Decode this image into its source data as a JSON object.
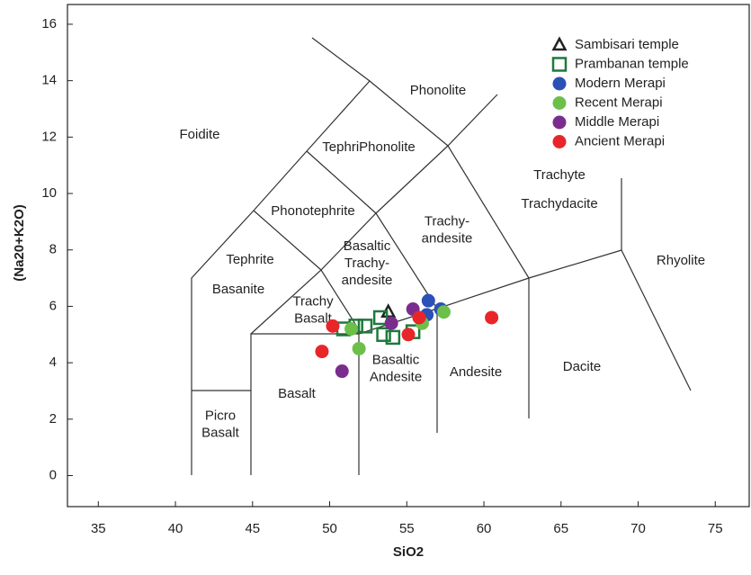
{
  "chart_data": {
    "type": "scatter",
    "x_label": "SiO2",
    "y_label": "(Na20+K2O)",
    "xlim": [
      33,
      77.2
    ],
    "ylim": [
      -1.1,
      16.7
    ],
    "xticks": [
      35,
      40,
      45,
      50,
      55,
      60,
      65,
      70,
      75
    ],
    "yticks": [
      0,
      2,
      4,
      6,
      8,
      10,
      12,
      14,
      16
    ],
    "legend": "upper right",
    "field_labels": [
      [
        "Foidite"
      ],
      [
        "Phonolite"
      ],
      [
        "TephriPhonolite"
      ],
      [
        "Phonotephrite"
      ],
      [
        "Tephrite"
      ],
      [
        "Basanite"
      ],
      [
        "Trachyte"
      ],
      [
        "Trachydacite"
      ],
      [
        "Rhyolite"
      ],
      [
        "Trachy-",
        "andesite"
      ],
      [
        "Basaltic",
        "Trachy-",
        "andesite"
      ],
      [
        "Trachy",
        "Basalt"
      ],
      [
        "Basalt"
      ],
      [
        "Basaltic",
        "Andesite"
      ],
      [
        "Andesite"
      ],
      [
        "Dacite"
      ],
      [
        "Picro",
        "Basalt"
      ]
    ],
    "series": [
      {
        "name": "Sambisari temple",
        "marker": "triangle",
        "color": "#222222",
        "x": [
          53.8
        ],
        "values": [
          5.8
        ]
      },
      {
        "name": "Prambanan temple",
        "marker": "square",
        "color": "#1d7a3c",
        "x": [
          50.9,
          51.7,
          52.3,
          53.3,
          53.5,
          54.1,
          55.4
        ],
        "values": [
          5.2,
          5.3,
          5.3,
          5.6,
          5.0,
          4.9,
          5.1
        ]
      },
      {
        "name": "Modern Merapi",
        "marker": "circle",
        "color": "#2b50b8",
        "x": [
          56.4,
          57.2,
          56.3
        ],
        "values": [
          6.2,
          5.9,
          5.7
        ]
      },
      {
        "name": "Recent Merapi",
        "marker": "circle",
        "color": "#6cc04a",
        "x": [
          51.4,
          51.9,
          56.0,
          57.4
        ],
        "values": [
          5.2,
          4.5,
          5.4,
          5.8
        ]
      },
      {
        "name": "Middle Merapi",
        "marker": "circle",
        "color": "#7b2d8e",
        "x": [
          55.4,
          54.0,
          50.8
        ],
        "values": [
          5.9,
          5.4,
          3.7
        ]
      },
      {
        "name": "Ancient Merapi",
        "marker": "circle",
        "color": "#e8262a",
        "x": [
          50.2,
          49.5,
          55.8,
          55.1,
          60.5
        ],
        "values": [
          5.3,
          4.4,
          5.6,
          5.0,
          5.6
        ]
      }
    ]
  }
}
